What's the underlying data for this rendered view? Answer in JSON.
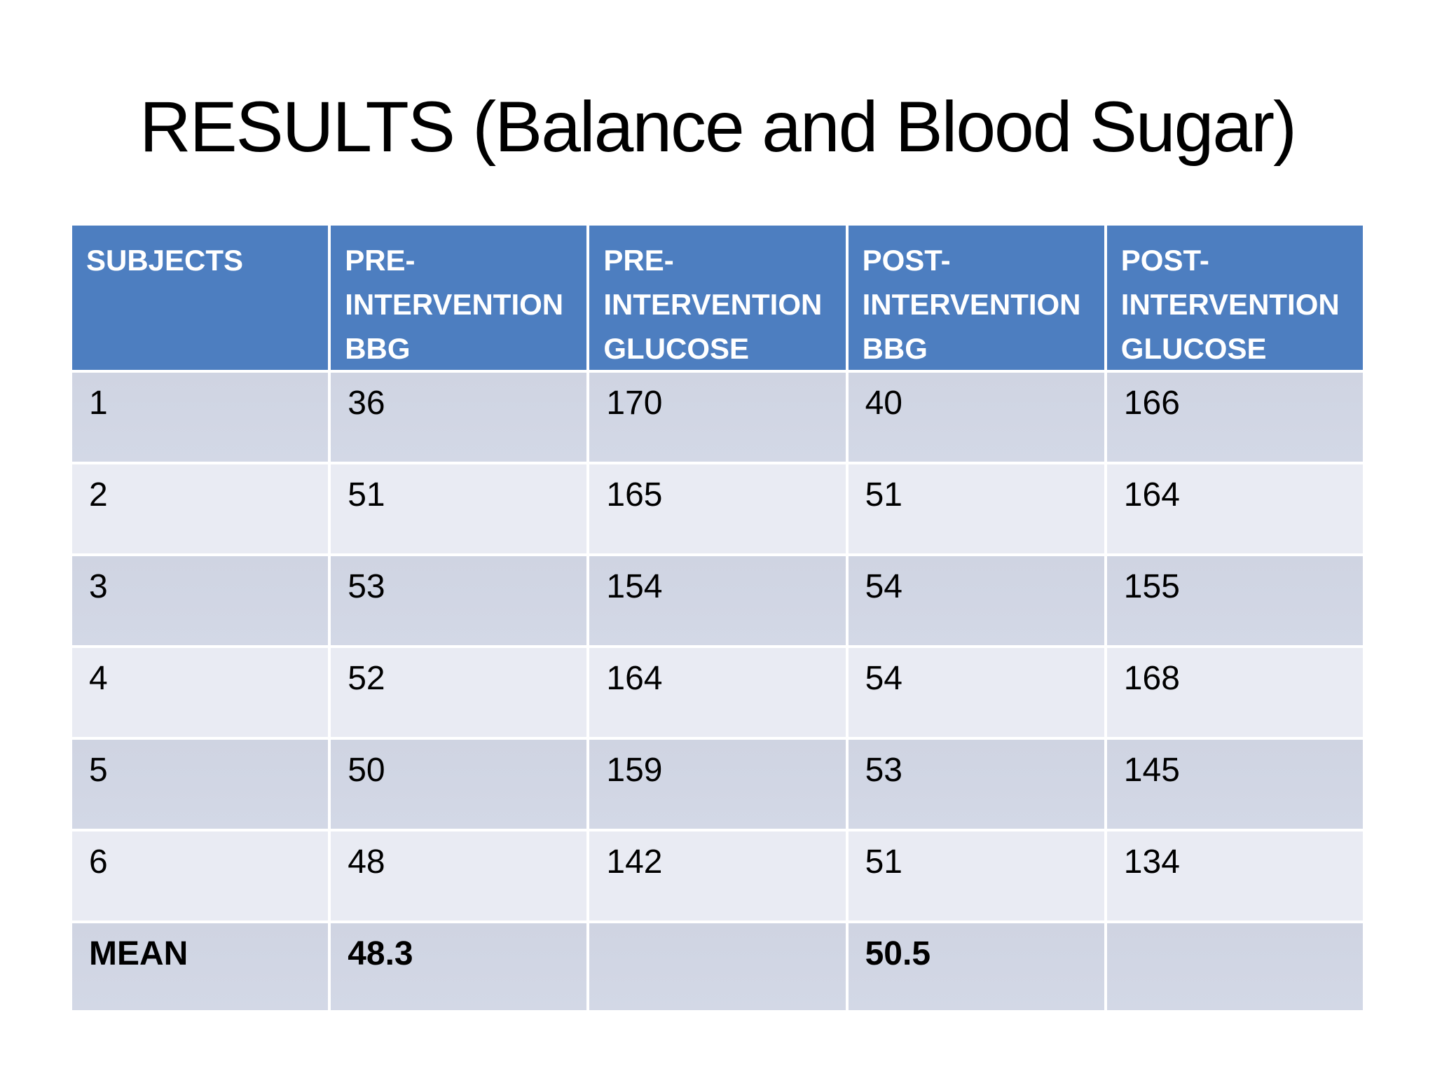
{
  "slide_title": "RESULTS (Balance and Blood Sugar)",
  "table": {
    "headers": [
      "SUBJECTS",
      "PRE-INTERVENTION BBG",
      "PRE-INTERVENTION GLUCOSE",
      "POST-INTERVENTION BBG",
      "POST-INTERVENTION GLUCOSE"
    ],
    "rows": [
      [
        "1",
        "36",
        "170",
        "40",
        "166"
      ],
      [
        "2",
        "51",
        "165",
        "51",
        "164"
      ],
      [
        "3",
        "53",
        "154",
        "54",
        "155"
      ],
      [
        "4",
        "52",
        "164",
        "54",
        "168"
      ],
      [
        "5",
        "50",
        "159",
        "53",
        "145"
      ],
      [
        "6",
        "48",
        "142",
        "51",
        "134"
      ],
      [
        "MEAN",
        "48.3",
        "",
        "50.5",
        ""
      ]
    ],
    "colors": {
      "header_bg": "#4D7EC0",
      "header_text": "#FFFFFF",
      "row_odd_bg": "#D1D6E4",
      "row_even_bg": "#E9EBF3",
      "body_text": "#000000",
      "grid_line": "#FFFFFF"
    }
  }
}
